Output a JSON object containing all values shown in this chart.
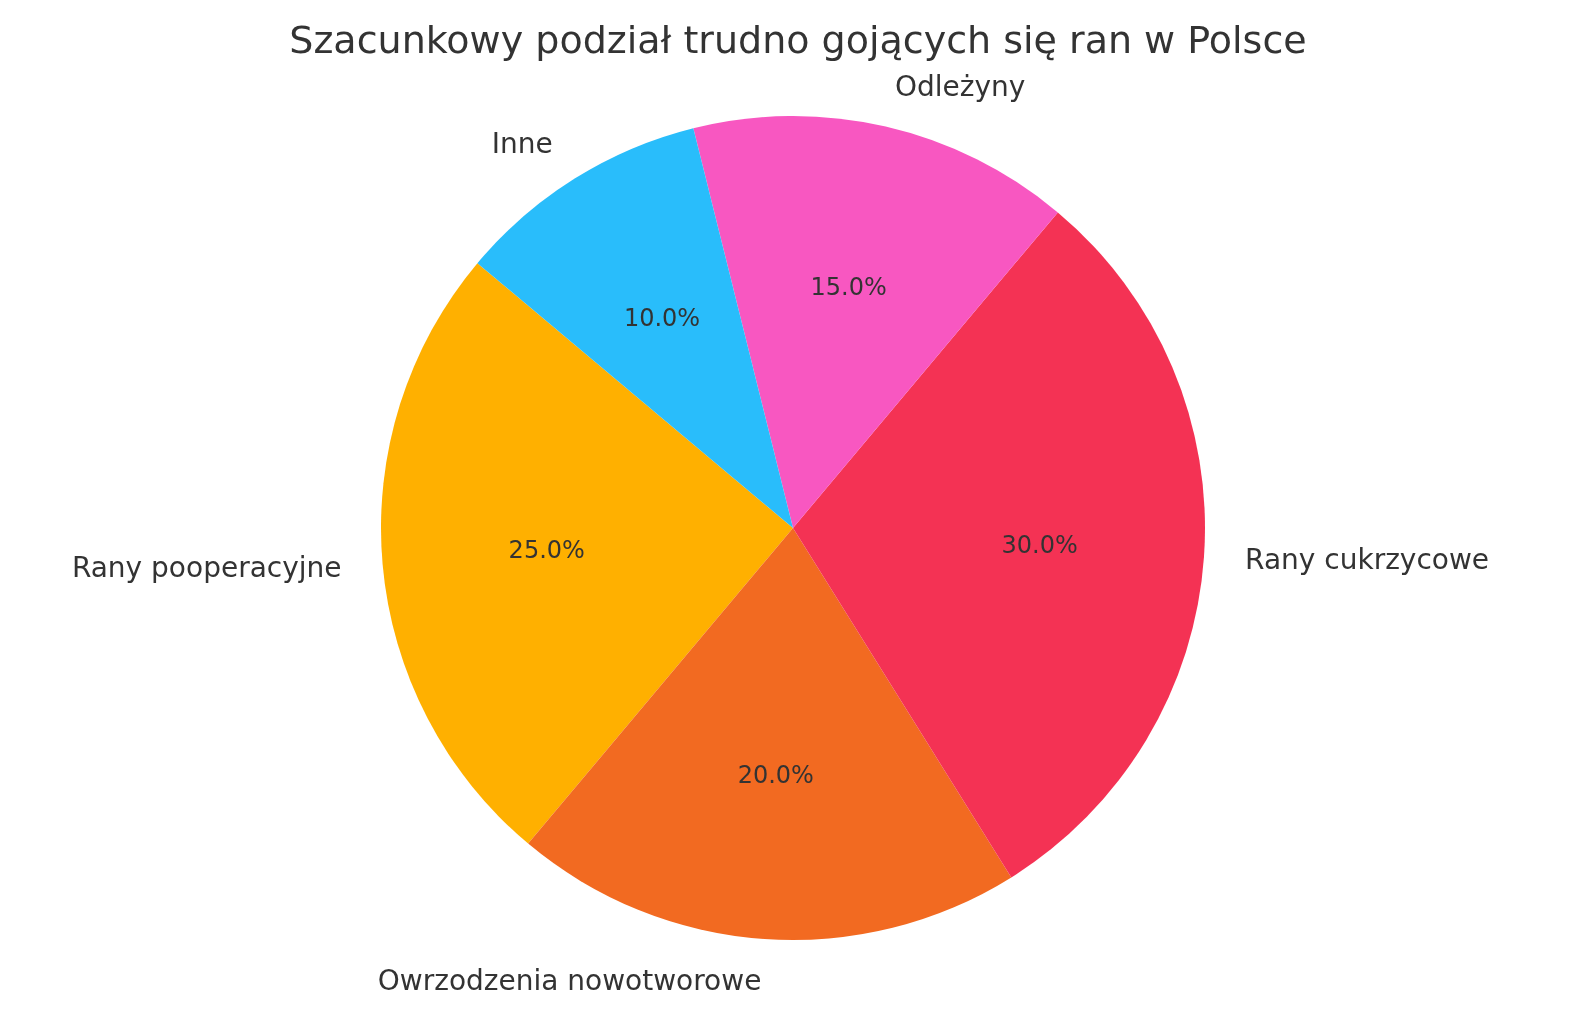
{
  "chart_data": {
    "type": "pie",
    "title": "Szacunkowy podział trudno gojących się ran w Polsce",
    "categories": [
      "Rany pooperacyjne",
      "Owrzodzenia nowotworowe",
      "Rany cukrzycowe",
      "Odleżyny",
      "Inne"
    ],
    "values": [
      25,
      20,
      30,
      15,
      10
    ],
    "colors": [
      "#ffb000",
      "#f26a21",
      "#f43254",
      "#f857c1",
      "#29bdfb"
    ],
    "value_labels": [
      "25.0%",
      "20.0%",
      "30.0%",
      "15.0%",
      "10.0%"
    ]
  }
}
